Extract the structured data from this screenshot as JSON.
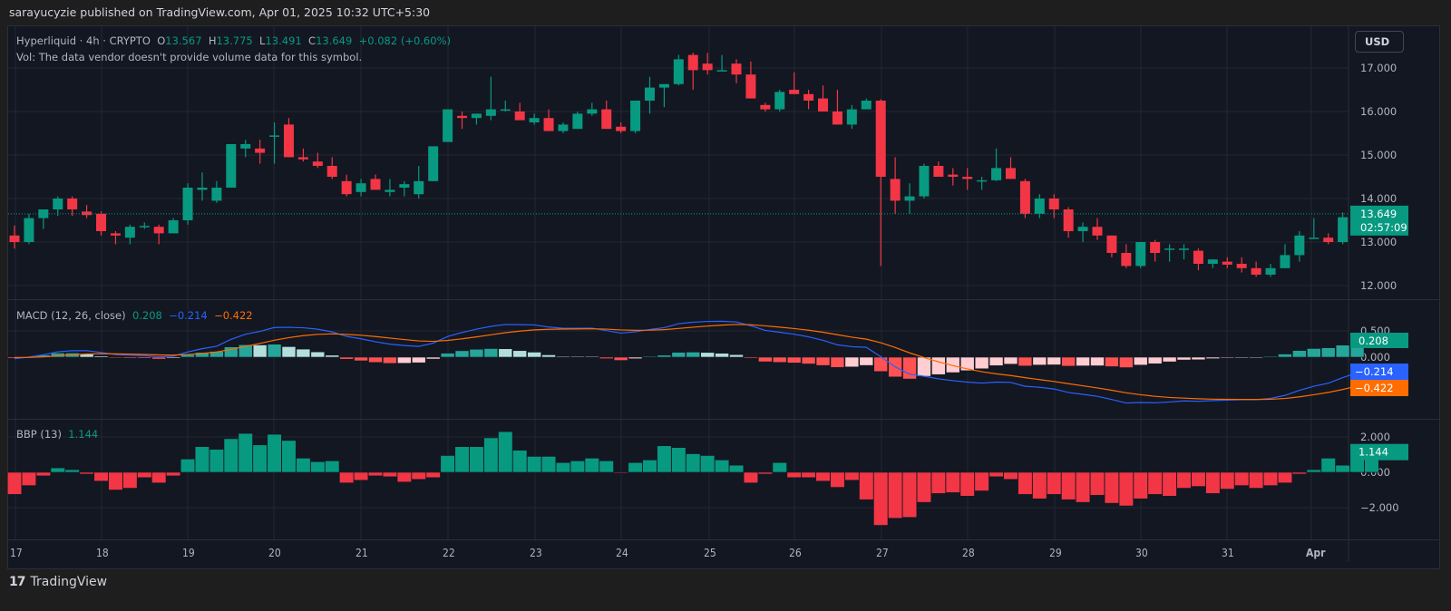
{
  "header": {
    "publisher_text": "sarayucyzie published on TradingView.com, Apr 01, 2025 10:32 UTC+5:30"
  },
  "legend": {
    "symbol": "Hyperliquid · 4h · CRYPTO",
    "o_label": "O",
    "o_value": "13.567",
    "h_label": "H",
    "h_value": "13.775",
    "l_label": "L",
    "l_value": "13.491",
    "c_label": "C",
    "c_value": "13.649",
    "change": "+0.082 (+0.60%)",
    "vol_note": "Vol: The data vendor doesn't provide volume data for this symbol."
  },
  "currency_button": "USD",
  "price_axis": {
    "ticks": [
      "17.000",
      "16.000",
      "15.000",
      "14.000",
      "13.000",
      "12.000"
    ],
    "last_price": "13.649",
    "countdown": "02:57:09"
  },
  "macd": {
    "label": "MACD (12, 26, close)",
    "hist_value": "0.208",
    "macd_value": "−0.214",
    "signal_value": "−0.422",
    "ticks": [
      "0.500",
      "0.000"
    ]
  },
  "bbp": {
    "label": "BBP (13)",
    "value": "1.144",
    "ticks": [
      "2.000",
      "0.000",
      "−2.000"
    ]
  },
  "time_axis": [
    "17",
    "18",
    "19",
    "20",
    "21",
    "22",
    "23",
    "24",
    "25",
    "26",
    "27",
    "28",
    "29",
    "30",
    "31",
    "Apr"
  ],
  "footer": {
    "brand": "TradingView"
  },
  "colors": {
    "up": "#089981",
    "down": "#f23645",
    "macd_line": "#2962ff",
    "signal_line": "#ff6d00",
    "hist_up_strong": "#26a69a",
    "hist_up_weak": "#b2dfdb",
    "hist_down_strong": "#ff5252",
    "hist_down_weak": "#ffcdd2",
    "bg": "#131722",
    "grid": "#232733"
  },
  "chart_data": [
    {
      "type": "candlestick",
      "title": "Hyperliquid · 4h · CRYPTO",
      "ylabel": "USD",
      "ylim": [
        11.7,
        17.5
      ],
      "x_ticks": [
        "17",
        "18",
        "19",
        "20",
        "21",
        "22",
        "23",
        "24",
        "25",
        "26",
        "27",
        "28",
        "29",
        "30",
        "31",
        "Apr"
      ],
      "candles": [
        [
          13.15,
          13.38,
          12.85,
          13.0
        ],
        [
          13.0,
          13.65,
          12.95,
          13.55
        ],
        [
          13.55,
          13.75,
          13.3,
          13.75
        ],
        [
          13.75,
          14.05,
          13.6,
          14.0
        ],
        [
          14.0,
          14.05,
          13.6,
          13.75
        ],
        [
          13.7,
          13.85,
          13.55,
          13.62
        ],
        [
          13.65,
          13.7,
          13.15,
          13.25
        ],
        [
          13.2,
          13.25,
          12.95,
          13.15
        ],
        [
          13.1,
          13.4,
          12.95,
          13.35
        ],
        [
          13.35,
          13.45,
          13.3,
          13.37
        ],
        [
          13.35,
          13.4,
          12.95,
          13.2
        ],
        [
          13.2,
          13.55,
          13.2,
          13.5
        ],
        [
          13.5,
          14.35,
          13.4,
          14.25
        ],
        [
          14.2,
          14.6,
          13.95,
          14.25
        ],
        [
          13.95,
          14.4,
          13.9,
          14.25
        ],
        [
          14.25,
          15.25,
          14.25,
          15.25
        ],
        [
          15.15,
          15.35,
          14.95,
          15.25
        ],
        [
          15.15,
          15.35,
          14.8,
          15.05
        ],
        [
          15.45,
          15.75,
          14.8,
          15.45
        ],
        [
          15.7,
          15.85,
          15.2,
          14.95
        ],
        [
          14.95,
          15.15,
          14.85,
          14.9
        ],
        [
          14.85,
          15.05,
          14.7,
          14.75
        ],
        [
          14.75,
          14.95,
          14.45,
          14.5
        ],
        [
          14.4,
          14.55,
          14.05,
          14.1
        ],
        [
          14.15,
          14.45,
          14.05,
          14.35
        ],
        [
          14.45,
          14.55,
          14.25,
          14.2
        ],
        [
          14.15,
          14.45,
          14.05,
          14.2
        ],
        [
          14.25,
          14.4,
          14.05,
          14.33
        ],
        [
          14.1,
          14.75,
          14.0,
          14.4
        ],
        [
          14.4,
          14.8,
          14.4,
          15.2
        ],
        [
          15.3,
          16.0,
          15.3,
          16.05
        ],
        [
          15.9,
          16.0,
          15.6,
          15.85
        ],
        [
          15.85,
          15.95,
          15.7,
          15.95
        ],
        [
          15.9,
          16.8,
          15.8,
          16.05
        ],
        [
          16.05,
          16.25,
          16.0,
          16.05
        ],
        [
          16.0,
          16.2,
          15.8,
          15.8
        ],
        [
          15.75,
          15.95,
          15.7,
          15.85
        ],
        [
          15.85,
          16.05,
          15.6,
          15.55
        ],
        [
          15.55,
          15.75,
          15.5,
          15.7
        ],
        [
          15.6,
          16.0,
          15.6,
          15.95
        ],
        [
          15.95,
          16.2,
          15.9,
          16.05
        ],
        [
          16.05,
          16.25,
          15.6,
          15.6
        ],
        [
          15.65,
          15.75,
          15.5,
          15.55
        ],
        [
          15.55,
          16.2,
          15.5,
          16.25
        ],
        [
          16.25,
          16.8,
          15.95,
          16.55
        ],
        [
          16.55,
          16.6,
          16.1,
          16.63
        ],
        [
          16.63,
          17.3,
          16.6,
          17.2
        ],
        [
          17.3,
          17.35,
          16.5,
          16.95
        ],
        [
          17.1,
          17.35,
          16.85,
          16.95
        ],
        [
          16.95,
          17.3,
          16.95,
          16.95
        ],
        [
          17.1,
          17.2,
          16.65,
          16.85
        ],
        [
          16.85,
          17.15,
          16.3,
          16.3
        ],
        [
          16.15,
          16.2,
          16.0,
          16.05
        ],
        [
          16.05,
          16.5,
          16.0,
          16.45
        ],
        [
          16.5,
          16.9,
          16.4,
          16.4
        ],
        [
          16.4,
          16.5,
          16.05,
          16.25
        ],
        [
          16.3,
          16.6,
          16.1,
          16.0
        ],
        [
          16.0,
          16.5,
          15.85,
          15.7
        ],
        [
          15.7,
          16.15,
          15.6,
          16.05
        ],
        [
          16.05,
          16.3,
          16.05,
          16.25
        ],
        [
          16.25,
          16.28,
          12.45,
          14.5
        ],
        [
          14.45,
          14.95,
          13.65,
          13.95
        ],
        [
          13.95,
          14.35,
          13.65,
          14.05
        ],
        [
          14.05,
          14.8,
          14.0,
          14.75
        ],
        [
          14.75,
          14.85,
          14.6,
          14.5
        ],
        [
          14.55,
          14.7,
          14.3,
          14.5
        ],
        [
          14.5,
          14.7,
          14.2,
          14.45
        ],
        [
          14.4,
          14.5,
          14.2,
          14.42
        ],
        [
          14.42,
          15.15,
          14.4,
          14.7
        ],
        [
          14.7,
          14.95,
          14.5,
          14.45
        ],
        [
          14.4,
          14.45,
          13.55,
          13.65
        ],
        [
          13.65,
          14.1,
          13.55,
          14.0
        ],
        [
          14.0,
          14.1,
          13.55,
          13.75
        ],
        [
          13.75,
          13.8,
          13.1,
          13.25
        ],
        [
          13.25,
          13.45,
          13.0,
          13.35
        ],
        [
          13.35,
          13.55,
          13.05,
          13.15
        ],
        [
          13.15,
          13.05,
          12.65,
          12.75
        ],
        [
          12.75,
          12.95,
          12.4,
          12.45
        ],
        [
          12.45,
          13.0,
          12.4,
          13.0
        ],
        [
          13.0,
          13.05,
          12.55,
          12.75
        ],
        [
          12.85,
          12.95,
          12.55,
          12.85
        ],
        [
          12.85,
          12.95,
          12.6,
          12.85
        ],
        [
          12.8,
          12.85,
          12.35,
          12.5
        ],
        [
          12.5,
          12.6,
          12.4,
          12.6
        ],
        [
          12.55,
          12.65,
          12.4,
          12.48
        ],
        [
          12.5,
          12.65,
          12.3,
          12.4
        ],
        [
          12.4,
          12.55,
          12.2,
          12.25
        ],
        [
          12.25,
          12.5,
          12.2,
          12.4
        ],
        [
          12.4,
          12.95,
          12.4,
          12.7
        ],
        [
          12.7,
          13.25,
          12.55,
          13.15
        ],
        [
          13.1,
          13.55,
          13.1,
          13.1
        ],
        [
          13.1,
          13.2,
          12.95,
          13.0
        ],
        [
          13.0,
          13.68,
          12.95,
          13.57
        ],
        [
          13.567,
          13.775,
          13.491,
          13.649
        ]
      ],
      "last": {
        "open": 13.567,
        "high": 13.775,
        "low": 13.491,
        "close": 13.649,
        "change": 0.082,
        "change_pct": 0.6
      }
    },
    {
      "type": "line+bar",
      "title": "MACD (12, 26, close)",
      "ylim": [
        -0.75,
        0.75
      ],
      "series": [
        {
          "name": "Histogram",
          "last": 0.208
        },
        {
          "name": "MACD",
          "last": -0.214
        },
        {
          "name": "Signal",
          "last": -0.422
        }
      ]
    },
    {
      "type": "bar",
      "title": "BBP (13)",
      "ylim": [
        -2.8,
        2.6
      ],
      "values": [
        -1.25,
        -0.75,
        -0.2,
        0.25,
        0.15,
        -0.1,
        -0.5,
        -1.0,
        -0.9,
        -0.3,
        -0.6,
        -0.2,
        0.75,
        1.45,
        1.3,
        1.9,
        2.2,
        1.55,
        2.15,
        1.8,
        0.8,
        0.6,
        0.65,
        -0.6,
        -0.45,
        -0.2,
        -0.25,
        -0.55,
        -0.4,
        -0.3,
        0.95,
        1.45,
        1.45,
        1.95,
        2.3,
        1.25,
        0.9,
        0.9,
        0.55,
        0.65,
        0.8,
        0.65,
        -0.05,
        0.55,
        0.7,
        1.5,
        1.4,
        1.05,
        0.95,
        0.7,
        0.4,
        -0.6,
        -0.1,
        0.55,
        -0.3,
        -0.3,
        -0.5,
        -0.85,
        -0.45,
        -1.55,
        -3.0,
        -2.6,
        -2.55,
        -1.7,
        -1.2,
        -1.15,
        -1.35,
        -1.05,
        -0.25,
        -0.4,
        -1.25,
        -1.5,
        -1.25,
        -1.55,
        -1.7,
        -1.3,
        -1.75,
        -1.9,
        -1.5,
        -1.25,
        -1.35,
        -0.9,
        -0.8,
        -1.2,
        -0.95,
        -0.75,
        -0.9,
        -0.75,
        -0.6,
        -0.1,
        0.15,
        0.8,
        0.4,
        0.72,
        1.144
      ],
      "last": 1.144
    }
  ]
}
